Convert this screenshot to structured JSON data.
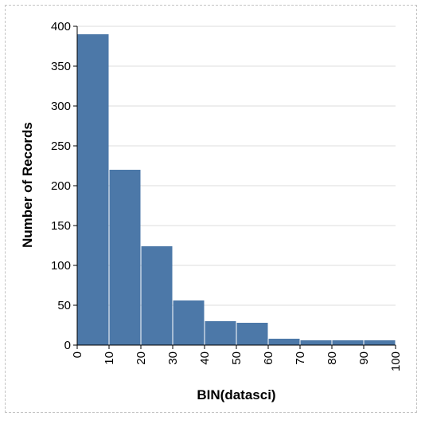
{
  "chart_data": {
    "type": "bar",
    "xlabel": "BIN(datasci)",
    "ylabel": "Number of Records",
    "bins": [
      {
        "x0": 0,
        "x1": 10,
        "value": 390
      },
      {
        "x0": 10,
        "x1": 20,
        "value": 220
      },
      {
        "x0": 20,
        "x1": 30,
        "value": 124
      },
      {
        "x0": 30,
        "x1": 40,
        "value": 56
      },
      {
        "x0": 40,
        "x1": 50,
        "value": 30
      },
      {
        "x0": 50,
        "x1": 60,
        "value": 28
      },
      {
        "x0": 60,
        "x1": 70,
        "value": 8
      },
      {
        "x0": 70,
        "x1": 80,
        "value": 6
      },
      {
        "x0": 80,
        "x1": 90,
        "value": 6
      },
      {
        "x0": 90,
        "x1": 100,
        "value": 6
      }
    ],
    "xlim": [
      0,
      100
    ],
    "ylim": [
      0,
      400
    ],
    "xticks": [
      0,
      10,
      20,
      30,
      40,
      50,
      60,
      70,
      80,
      90,
      100
    ],
    "yticks": [
      0,
      50,
      100,
      150,
      200,
      250,
      300,
      350,
      400
    ],
    "grid": "horizontal",
    "bar_color": "#4c78a8",
    "grid_color": "#dddddd",
    "axis_color": "#000000"
  }
}
